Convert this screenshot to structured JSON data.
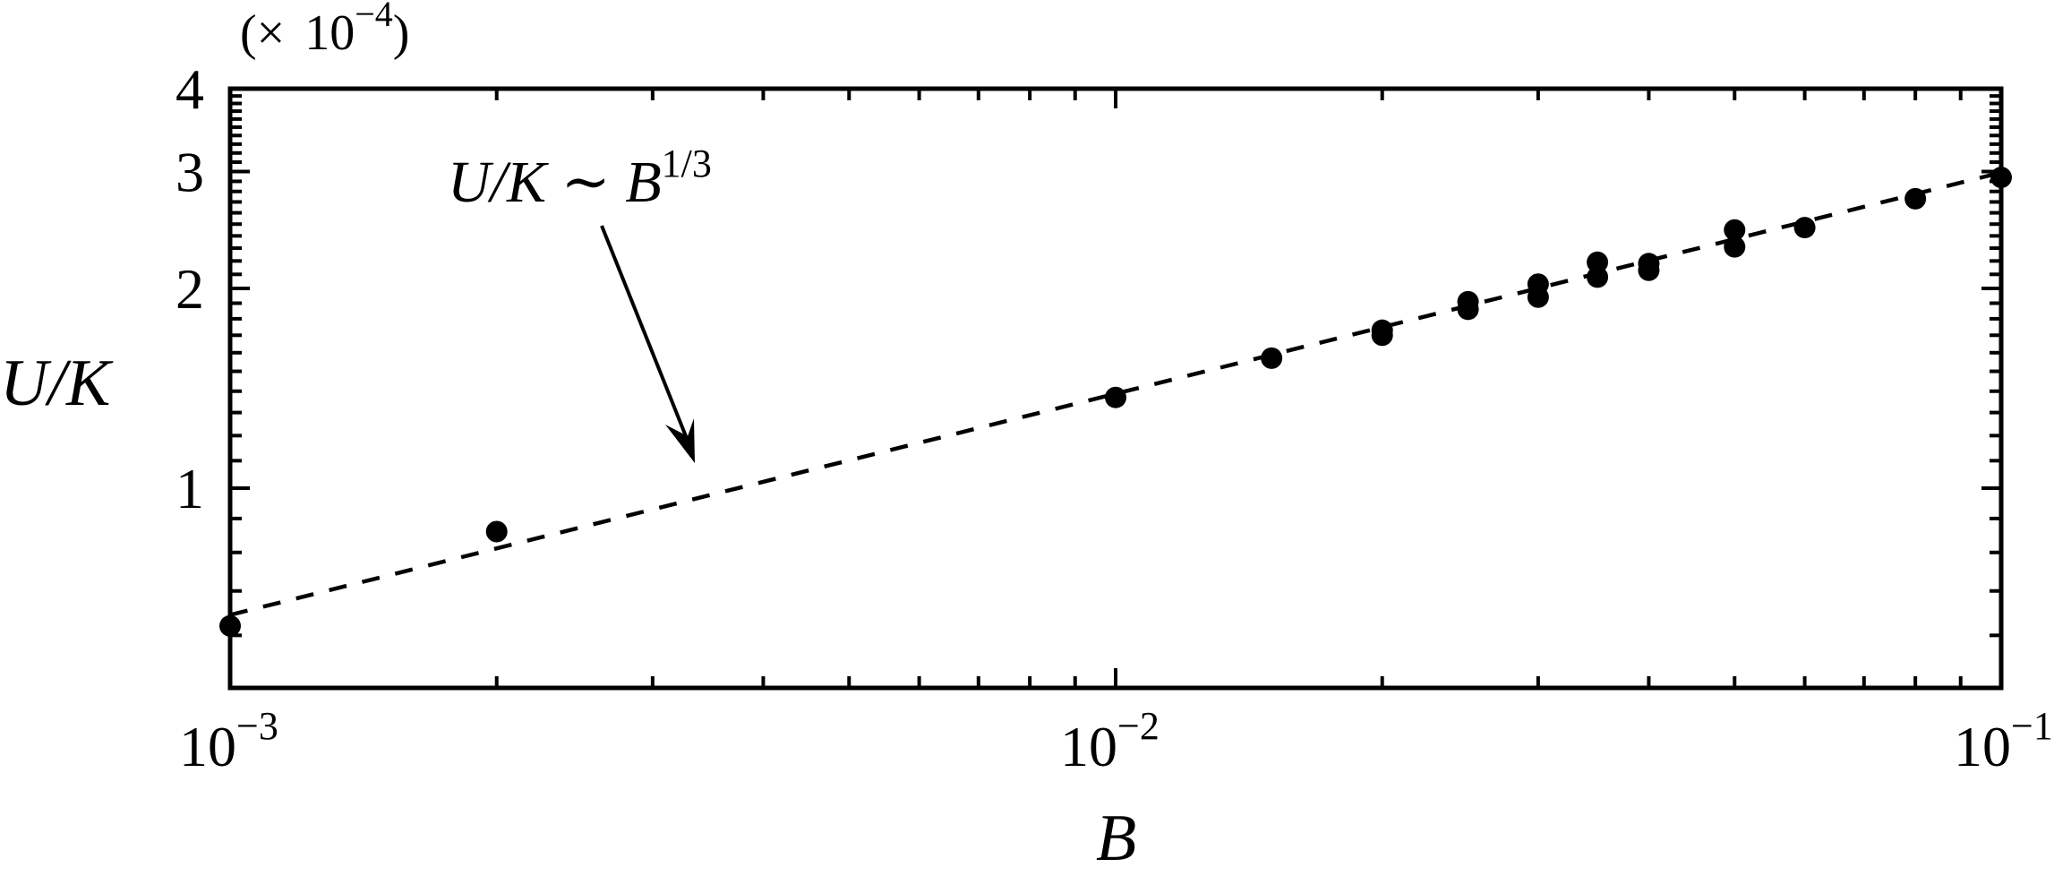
{
  "chart_data": {
    "type": "scatter",
    "title": "",
    "xlabel": "B",
    "ylabel": "U/K",
    "y_multiplier_label": "(× 10−4)",
    "y_multiplier": {
      "base": "10",
      "exponent": "−4"
    },
    "xscale": "log",
    "yscale": "log",
    "xlim": [
      0.001,
      0.1
    ],
    "ylim": [
      0.5,
      4
    ],
    "grid": false,
    "legend": null,
    "x_ticks": [
      {
        "value": 0.001,
        "base": "10",
        "exp": "−3"
      },
      {
        "value": 0.01,
        "base": "10",
        "exp": "−2"
      },
      {
        "value": 0.1,
        "base": "10",
        "exp": "−1"
      }
    ],
    "y_ticks": [
      {
        "value": 1,
        "label": "1"
      },
      {
        "value": 2,
        "label": "2"
      },
      {
        "value": 3,
        "label": "3"
      },
      {
        "value": 4,
        "label": "4"
      }
    ],
    "series": [
      {
        "name": "data",
        "style": "filled-circle",
        "color": "#000000",
        "points": [
          {
            "x": 0.001,
            "y": 0.62
          },
          {
            "x": 0.002,
            "y": 0.86
          },
          {
            "x": 0.01,
            "y": 1.37
          },
          {
            "x": 0.015,
            "y": 1.57
          },
          {
            "x": 0.02,
            "y": 1.7
          },
          {
            "x": 0.02,
            "y": 1.73
          },
          {
            "x": 0.025,
            "y": 1.86
          },
          {
            "x": 0.025,
            "y": 1.91
          },
          {
            "x": 0.03,
            "y": 1.94
          },
          {
            "x": 0.03,
            "y": 2.03
          },
          {
            "x": 0.035,
            "y": 2.08
          },
          {
            "x": 0.035,
            "y": 2.19
          },
          {
            "x": 0.04,
            "y": 2.13
          },
          {
            "x": 0.04,
            "y": 2.18
          },
          {
            "x": 0.05,
            "y": 2.31
          },
          {
            "x": 0.05,
            "y": 2.45
          },
          {
            "x": 0.06,
            "y": 2.47
          },
          {
            "x": 0.08,
            "y": 2.73
          },
          {
            "x": 0.1,
            "y": 2.94
          }
        ]
      },
      {
        "name": "fit U/K ~ B^(1/3)",
        "style": "dashed-line",
        "color": "#000000",
        "points": [
          {
            "x": 0.001,
            "y": 0.644
          },
          {
            "x": 0.1,
            "y": 2.99
          }
        ]
      }
    ],
    "annotations": [
      {
        "text": "U/K ∼ B",
        "superscript": "1/3",
        "position": {
          "x": 0.00125,
          "y": 2.55
        },
        "arrow_to": {
          "x": 0.0033,
          "y": 1.18
        }
      }
    ]
  }
}
